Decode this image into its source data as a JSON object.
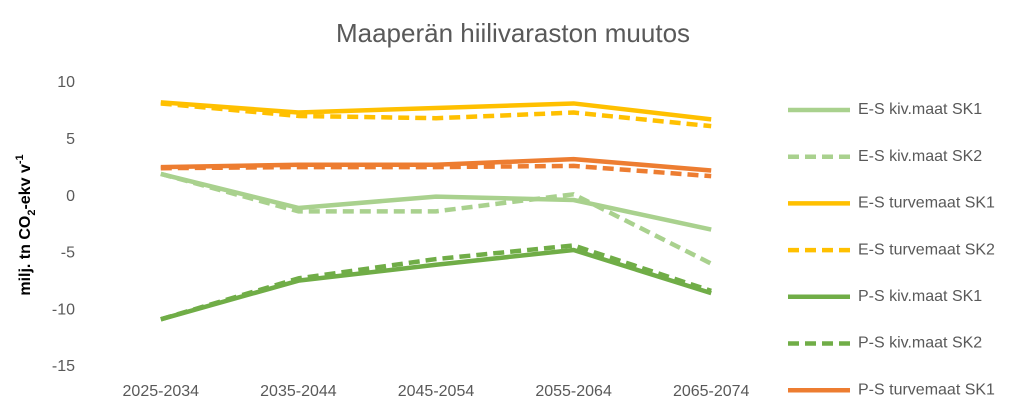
{
  "chart_data": {
    "type": "line",
    "title": "Maaperän hiilivaraston muutos",
    "y_label": [
      "milj. tn CO",
      "2",
      "-ekv v",
      "-1"
    ],
    "categories": [
      "2025-2034",
      "2035-2044",
      "2045-2054",
      "2055-2064",
      "2065-2074"
    ],
    "ylim": [
      -15,
      10
    ],
    "yticks": [
      -15,
      -10,
      -5,
      0,
      5,
      10
    ],
    "grid": false,
    "legend": "right",
    "series": [
      {
        "name": "E-S kiv.maat SK1",
        "color": "#a9d18e",
        "dash": false,
        "values": [
          2.0,
          -1.0,
          0.0,
          -0.3,
          -2.9
        ]
      },
      {
        "name": "E-S kiv.maat SK2",
        "color": "#a9d18e",
        "dash": true,
        "values": [
          2.0,
          -1.3,
          -1.3,
          0.2,
          -5.9
        ]
      },
      {
        "name": "E-S turvemaat SK1",
        "color": "#ffc000",
        "dash": false,
        "values": [
          8.3,
          7.4,
          7.8,
          8.2,
          6.8
        ]
      },
      {
        "name": "E-S turvemaat SK2",
        "color": "#ffc000",
        "dash": true,
        "values": [
          8.2,
          7.1,
          6.9,
          7.4,
          6.2
        ]
      },
      {
        "name": "P-S kiv.maat SK1",
        "color": "#70ad47",
        "dash": false,
        "values": [
          -10.8,
          -7.4,
          -6.0,
          -4.7,
          -8.5
        ]
      },
      {
        "name": "P-S kiv.maat SK2",
        "color": "#70ad47",
        "dash": true,
        "values": [
          -10.8,
          -7.2,
          -5.5,
          -4.3,
          -8.3
        ]
      },
      {
        "name": "P-S turvemaat SK1",
        "color": "#ed7d31",
        "dash": false,
        "values": [
          2.6,
          2.8,
          2.8,
          3.3,
          2.3
        ]
      },
      {
        "color": "#ed7d31",
        "dash": true,
        "values": [
          2.5,
          2.6,
          2.6,
          2.7,
          1.8
        ]
      }
    ]
  }
}
